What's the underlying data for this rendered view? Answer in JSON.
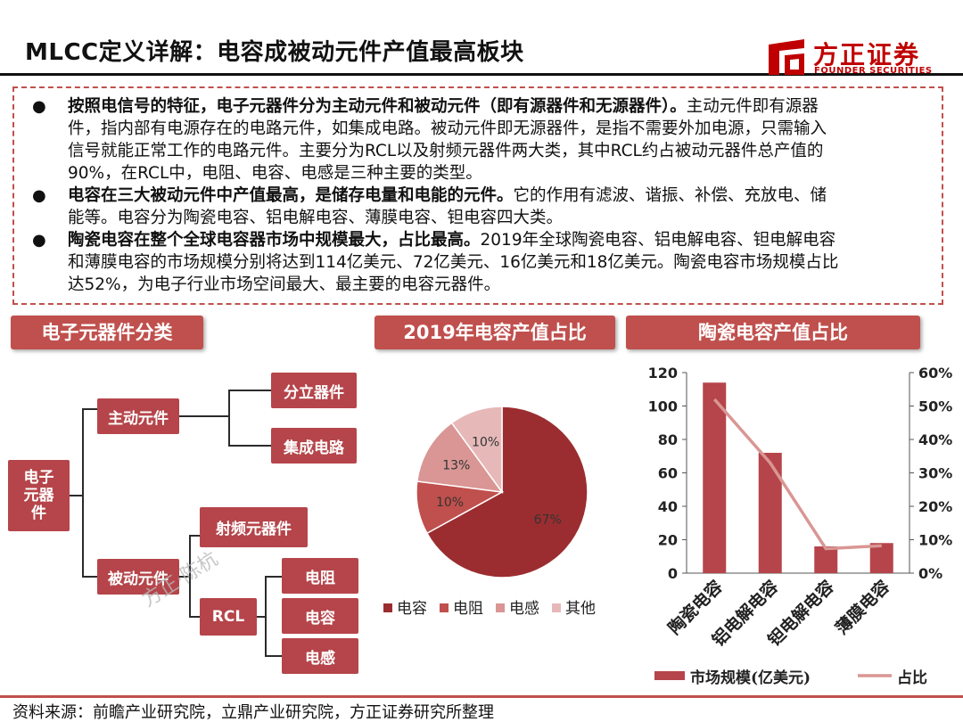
{
  "header": {
    "title": "MLCC定义详解：电容成被动元件产值最高板块",
    "logo_cn": "方正证券",
    "logo_en": "FOUNDER SECURITIES"
  },
  "summary": {
    "bullets": [
      {
        "bold": "按照电信号的特征，电子元器件分为主动元件和被动元件（即有源器件和无源器件）。",
        "lines": [
          "主动元件即有源器",
          "件，指内部有电源存在的电路元件，如集成电路。被动元件即无源器件，是指不需要外加电源，只需输入",
          "信号就能正常工作的电路元件。主要分为RCL以及射频元器件两大类，其中RCL约占被动元器件总产值的",
          "90%，在RCL中，电阻、电容、电感是三种主要的类型。"
        ]
      },
      {
        "bold": "电容在三大被动元件中产值最高，是储存电量和电能的元件。",
        "lines": [
          "它的作用有滤波、谐振、补偿、充放电、储",
          "能等。电容分为陶瓷电容、铝电解电容、薄膜电容、钽电容四大类。"
        ]
      },
      {
        "bold": "陶瓷电容在整个全球电容器市场中规模最大，占比最高。",
        "lines": [
          "2019年全球陶瓷电容、铝电解电容、钽电解电容",
          "和薄膜电容的市场规模分别将达到114亿美元、72亿美元、16亿美元和18亿美元。陶瓷电容市场规模占比",
          "达52%，为电子行业市场空间最大、最主要的电容元器件。"
        ]
      }
    ]
  },
  "sections": {
    "classification": "电子元器件分类",
    "pie_title": "2019年电容产值占比",
    "bar_title": "陶瓷电容产值占比"
  },
  "tree": {
    "root": "电子\n元器\n件",
    "active": "主动元件",
    "discrete": "分立器件",
    "ic": "集成电路",
    "passive": "被动元件",
    "rf": "射频元器件",
    "rcl": "RCL",
    "resistor": "电阻",
    "capacitor": "电容",
    "inductor": "电感"
  },
  "watermark": "方正·陈杭",
  "chart_data": [
    {
      "type": "pie",
      "title": "2019年电容产值占比",
      "categories": [
        "电容",
        "电阻",
        "电感",
        "其他"
      ],
      "values": [
        67,
        10,
        13,
        10
      ],
      "labels": [
        "67%",
        "10%",
        "13%",
        "10%"
      ],
      "colors": [
        "#9b2d30",
        "#c0504d",
        "#d99694",
        "#e6b9b8"
      ],
      "legend": "bottom"
    },
    {
      "type": "bar",
      "title": "陶瓷电容产值占比",
      "categories": [
        "陶瓷电容",
        "铝电解电容",
        "钽电解电容",
        "薄膜电容"
      ],
      "series": [
        {
          "name": "市场规模(亿美元)",
          "type": "bar",
          "axis": "left",
          "values": [
            114,
            72,
            16,
            18
          ],
          "color": "#b5454a"
        },
        {
          "name": "占比",
          "type": "line",
          "axis": "right",
          "values": [
            52,
            33,
            7.3,
            8.2
          ],
          "color": "#d99694"
        }
      ],
      "ylim": [
        0,
        120
      ],
      "yticks": [
        "0",
        "20",
        "40",
        "60",
        "80",
        "100",
        "120"
      ],
      "y2lim": [
        0,
        60
      ],
      "y2ticks": [
        "0%",
        "10%",
        "20%",
        "30%",
        "40%",
        "50%",
        "60%"
      ],
      "legend": "bottom"
    }
  ],
  "footer": {
    "source": "资料来源：前瞻产业研究院，立鼎产业研究院，方正证券研究所整理"
  }
}
